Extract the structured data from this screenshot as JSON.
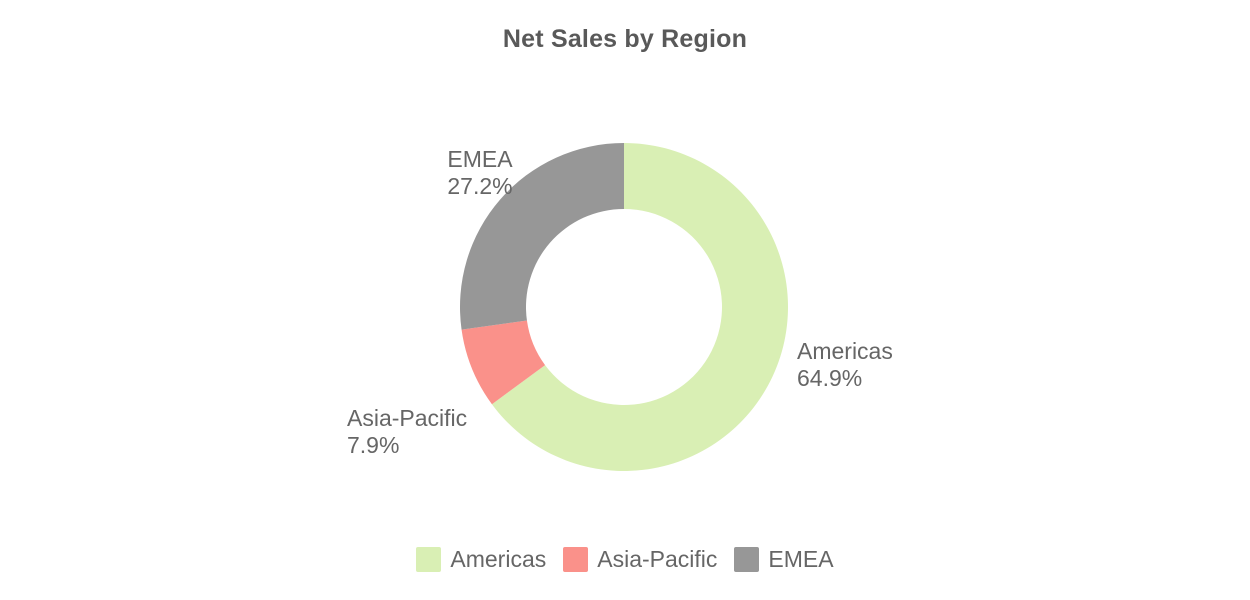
{
  "title": "Net Sales by Region",
  "colors": {
    "americas": "#d9efb4",
    "asia_pacific": "#fa918a",
    "emea": "#979797",
    "label_text": "#666666",
    "title_text": "#595959",
    "background": "#ffffff"
  },
  "chart_data": {
    "type": "pie",
    "subtype": "donut",
    "title": "Net Sales by Region",
    "categories": [
      "Americas",
      "Asia-Pacific",
      "EMEA"
    ],
    "values": [
      64.9,
      7.9,
      27.2
    ],
    "unit": "%",
    "colors": [
      "#d9efb4",
      "#fa918a",
      "#979797"
    ],
    "start_angle_deg": 0,
    "direction": "clockwise",
    "inner_radius_ratio": 0.6,
    "legend_position": "bottom",
    "grid": false,
    "labels": [
      {
        "name": "Americas",
        "value_text": "64.9%"
      },
      {
        "name": "Asia-Pacific",
        "value_text": "7.9%"
      },
      {
        "name": "EMEA",
        "value_text": "27.2%"
      }
    ]
  },
  "legend": {
    "items": [
      {
        "label": "Americas"
      },
      {
        "label": "Asia-Pacific"
      },
      {
        "label": "EMEA"
      }
    ]
  }
}
